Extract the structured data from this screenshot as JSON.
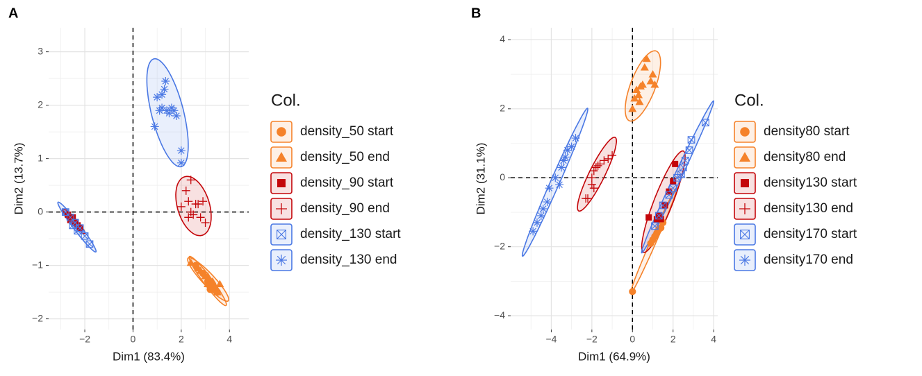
{
  "chart_data": [
    {
      "type": "scatter",
      "title": "A",
      "xlabel": "Dim1 (83.4%)",
      "ylabel": "Dim2 (13.7%)",
      "legend_title": "Col.",
      "xlim": [
        -3.5,
        4.8
      ],
      "ylim": [
        -2.2,
        3.45
      ],
      "xticks": [
        {
          "value": -2,
          "label": "−2"
        },
        0,
        2,
        4
      ],
      "yticks": [
        {
          "value": -2,
          "label": "−2"
        },
        {
          "value": -1,
          "label": "−1"
        },
        0,
        1,
        2,
        3
      ],
      "grid": true,
      "series": [
        {
          "name": "density_50 start",
          "color": "#f5822a",
          "marker": "circle",
          "x": [
            2.6,
            2.9,
            3.1,
            3.3,
            3.5,
            3.2
          ],
          "y": [
            -1.0,
            -1.15,
            -1.3,
            -1.35,
            -1.5,
            -1.45
          ]
        },
        {
          "name": "density_50 end",
          "color": "#f5822a",
          "marker": "triangle",
          "x": [
            2.4,
            2.7,
            2.8,
            3.0,
            3.1,
            3.2,
            3.3,
            3.4,
            3.5,
            3.6,
            3.3,
            3.1
          ],
          "y": [
            -0.95,
            -1.05,
            -1.1,
            -1.2,
            -1.35,
            -1.3,
            -1.3,
            -1.4,
            -1.5,
            -1.35,
            -1.45,
            -1.2
          ]
        },
        {
          "name": "density_90 start",
          "color": "#c4060a",
          "marker": "square",
          "x": [
            -2.7,
            -2.6,
            -2.4,
            -2.3,
            -2.5,
            -2.2
          ],
          "y": [
            -0.05,
            -0.15,
            -0.2,
            -0.25,
            -0.1,
            -0.3
          ]
        },
        {
          "name": "density_90 end",
          "color": "#c4060a",
          "marker": "plus",
          "x": [
            2.0,
            2.2,
            2.3,
            2.4,
            2.5,
            2.6,
            2.7,
            2.9,
            2.8,
            3.0,
            2.3,
            2.4
          ],
          "y": [
            0.1,
            0.4,
            0.2,
            0.0,
            -0.05,
            0.15,
            0.15,
            0.2,
            -0.1,
            -0.2,
            -0.1,
            0.6
          ]
        },
        {
          "name": "density_130 start",
          "color": "#4a78e4",
          "marker": "square-x",
          "x": [
            -2.8,
            -2.6,
            -2.4,
            -2.2,
            -2.0,
            -1.8,
            -2.5,
            -2.3
          ],
          "y": [
            0.0,
            -0.1,
            -0.2,
            -0.3,
            -0.45,
            -0.6,
            -0.25,
            -0.35
          ]
        },
        {
          "name": "density_130 end",
          "color": "#4a78e4",
          "marker": "asterisk",
          "x": [
            0.9,
            1.0,
            1.1,
            1.2,
            1.3,
            1.35,
            1.4,
            1.5,
            1.6,
            1.7,
            1.8,
            2.0,
            2.0,
            1.2
          ],
          "y": [
            1.6,
            2.15,
            1.9,
            2.2,
            2.3,
            2.45,
            1.9,
            1.85,
            1.95,
            1.9,
            1.8,
            1.15,
            0.92,
            1.95
          ]
        }
      ]
    },
    {
      "type": "scatter",
      "title": "B",
      "xlabel": "Dim1 (64.9%)",
      "ylabel": "Dim2 (31.1%)",
      "legend_title": "Col.",
      "xlim": [
        -6.0,
        4.2
      ],
      "ylim": [
        -4.4,
        4.35
      ],
      "xticks": [
        {
          "value": -4,
          "label": "−4"
        },
        {
          "value": -2,
          "label": "−2"
        },
        0,
        2,
        4
      ],
      "yticks": [
        {
          "value": -4,
          "label": "−4"
        },
        {
          "value": -2,
          "label": "−2"
        },
        0,
        2,
        4
      ],
      "grid": true,
      "series": [
        {
          "name": "density80 start",
          "color": "#f5822a",
          "marker": "circle",
          "x": [
            0.9,
            1.0,
            1.2,
            1.3,
            1.4,
            1.1,
            1.5,
            0.0
          ],
          "y": [
            -1.9,
            -1.8,
            -1.6,
            -1.5,
            -1.45,
            -1.7,
            -1.3,
            -3.3
          ]
        },
        {
          "name": "density80 end",
          "color": "#f5822a",
          "marker": "triangle",
          "x": [
            0.0,
            0.1,
            0.2,
            0.3,
            0.4,
            0.5,
            0.6,
            0.7,
            0.9,
            1.0,
            1.1,
            0.35
          ],
          "y": [
            2.0,
            2.3,
            2.55,
            2.4,
            2.65,
            2.7,
            3.2,
            3.45,
            2.8,
            3.0,
            2.7,
            2.2
          ]
        },
        {
          "name": "density130 start",
          "color": "#c4060a",
          "marker": "square",
          "x": [
            0.8,
            1.3,
            1.4,
            1.6,
            1.8,
            2.0,
            2.1,
            1.2
          ],
          "y": [
            -1.15,
            -1.1,
            -1.2,
            -0.8,
            -0.4,
            -0.1,
            0.4,
            -1.2
          ]
        },
        {
          "name": "density130 end",
          "color": "#c4060a",
          "marker": "plus",
          "x": [
            -2.3,
            -2.2,
            -2.0,
            -1.9,
            -1.8,
            -1.7,
            -1.6,
            -1.4,
            -1.2,
            -1.0,
            -1.9,
            -2.0
          ],
          "y": [
            -0.6,
            -0.6,
            0.0,
            0.2,
            0.3,
            0.35,
            0.4,
            0.5,
            0.55,
            0.65,
            -0.3,
            -0.2
          ]
        },
        {
          "name": "density170 start",
          "color": "#4a78e4",
          "marker": "square-x",
          "x": [
            3.6,
            2.9,
            2.8,
            2.6,
            2.5,
            2.2,
            2.0,
            1.8,
            1.5,
            1.3,
            1.1,
            2.4
          ],
          "y": [
            1.6,
            1.1,
            0.8,
            0.5,
            0.3,
            0.0,
            -0.3,
            -0.5,
            -0.8,
            -1.1,
            -1.4,
            0.1
          ]
        },
        {
          "name": "density170 end",
          "color": "#4a78e4",
          "marker": "asterisk",
          "x": [
            -4.9,
            -4.7,
            -4.5,
            -4.4,
            -4.2,
            -4.1,
            -3.8,
            -3.6,
            -3.5,
            -3.3,
            -3.2,
            -3.0,
            -2.8,
            -3.4
          ],
          "y": [
            -1.55,
            -1.3,
            -1.1,
            -0.9,
            -0.7,
            -0.3,
            0.0,
            -0.2,
            0.3,
            0.6,
            0.8,
            0.9,
            1.15,
            0.5
          ]
        }
      ]
    }
  ]
}
